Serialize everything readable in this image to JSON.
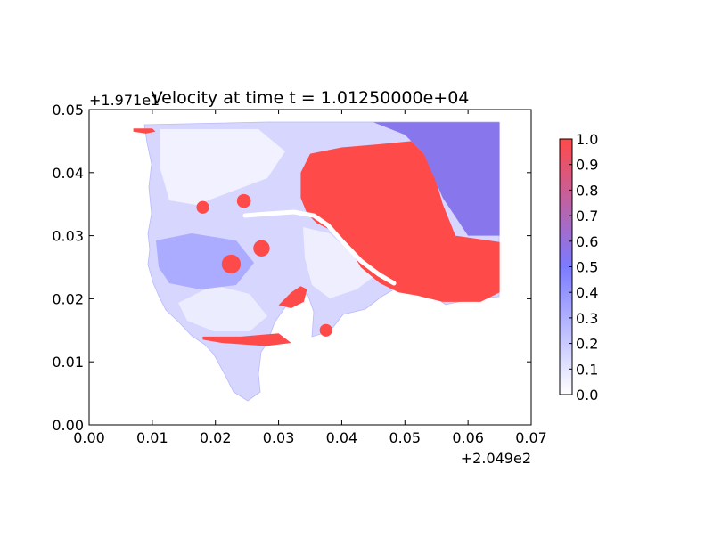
{
  "chart_data": {
    "type": "heatmap",
    "title": "Velocity at time t = 1.01250000e+04",
    "x_offset_label": "+2.049e2",
    "y_offset_label": "+1.971e1",
    "xlim": [
      0.0,
      0.07
    ],
    "ylim": [
      0.0,
      0.05
    ],
    "x_ticks": [
      "0.00",
      "0.01",
      "0.02",
      "0.03",
      "0.04",
      "0.05",
      "0.06",
      "0.07"
    ],
    "y_ticks": [
      "0.00",
      "0.01",
      "0.02",
      "0.03",
      "0.04",
      "0.05"
    ],
    "colorbar": {
      "range": [
        0.0,
        1.0
      ],
      "ticks": [
        "0.0",
        "0.1",
        "0.2",
        "0.3",
        "0.4",
        "0.5",
        "0.6",
        "0.7",
        "0.8",
        "0.9",
        "1.0"
      ],
      "colors": [
        "#ffffff",
        "#7b7bff",
        "#ff4a4a"
      ]
    },
    "grid": false,
    "legend": "colorbar-right",
    "regions": [
      {
        "name": "upper-right high-velocity field",
        "value": 1.0,
        "poly": [
          [
            0.0335,
            0.04
          ],
          [
            0.035,
            0.043
          ],
          [
            0.04,
            0.044
          ],
          [
            0.046,
            0.0445
          ],
          [
            0.051,
            0.045
          ],
          [
            0.054,
            0.042
          ],
          [
            0.056,
            0.035
          ],
          [
            0.058,
            0.03
          ],
          [
            0.065,
            0.029
          ],
          [
            0.065,
            0.021
          ],
          [
            0.062,
            0.0195
          ],
          [
            0.056,
            0.0195
          ],
          [
            0.052,
            0.0205
          ],
          [
            0.049,
            0.021
          ],
          [
            0.046,
            0.0225
          ],
          [
            0.043,
            0.025
          ],
          [
            0.041,
            0.0285
          ],
          [
            0.038,
            0.031
          ],
          [
            0.036,
            0.032
          ],
          [
            0.0345,
            0.0335
          ],
          [
            0.0335,
            0.036
          ]
        ]
      },
      {
        "name": "upper-right blue field",
        "value": 0.55,
        "poly": [
          [
            0.045,
            0.048
          ],
          [
            0.065,
            0.048
          ],
          [
            0.065,
            0.03
          ],
          [
            0.06,
            0.03
          ],
          [
            0.056,
            0.036
          ],
          [
            0.053,
            0.043
          ],
          [
            0.05,
            0.046
          ]
        ]
      },
      {
        "name": "lower-left red zone",
        "value": 1.0,
        "poly": [
          [
            0.021,
            0.013
          ],
          [
            0.028,
            0.0125
          ],
          [
            0.032,
            0.013
          ],
          [
            0.03,
            0.0145
          ],
          [
            0.024,
            0.014
          ],
          [
            0.018,
            0.014
          ],
          [
            0.018,
            0.0135
          ]
        ]
      },
      {
        "name": "channel red zone",
        "value": 1.0,
        "poly": [
          [
            0.03,
            0.019
          ],
          [
            0.032,
            0.021
          ],
          [
            0.0335,
            0.022
          ],
          [
            0.0345,
            0.0215
          ],
          [
            0.034,
            0.0195
          ],
          [
            0.032,
            0.0185
          ]
        ]
      },
      {
        "name": "central spot 1",
        "value": 1.0,
        "center": [
          0.0225,
          0.0255
        ],
        "r": 0.0015
      },
      {
        "name": "central spot 2",
        "value": 1.0,
        "center": [
          0.0273,
          0.028
        ],
        "r": 0.0013
      },
      {
        "name": "central spot 3",
        "value": 1.0,
        "center": [
          0.018,
          0.0345
        ],
        "r": 0.001
      },
      {
        "name": "central spot 4",
        "value": 1.0,
        "center": [
          0.0245,
          0.0355
        ],
        "r": 0.0011
      },
      {
        "name": "bay outlet spot",
        "value": 1.0,
        "center": [
          0.0375,
          0.015
        ],
        "r": 0.001
      },
      {
        "name": "west edge strip",
        "value": 1.0,
        "poly": [
          [
            0.007,
            0.047
          ],
          [
            0.01,
            0.047
          ],
          [
            0.0105,
            0.0465
          ],
          [
            0.009,
            0.0462
          ],
          [
            0.007,
            0.0465
          ]
        ]
      }
    ]
  }
}
